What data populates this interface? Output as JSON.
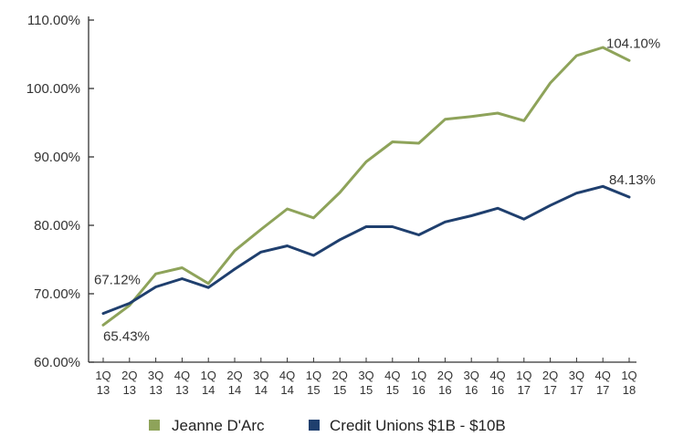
{
  "chart_data": {
    "type": "line",
    "title": "",
    "xlabel": "",
    "ylabel": "",
    "ylim": [
      60,
      110
    ],
    "yticks": [
      60,
      70,
      80,
      90,
      100,
      110
    ],
    "ytick_labels": [
      "60.00%",
      "70.00%",
      "80.00%",
      "90.00%",
      "100.00%",
      "110.00%"
    ],
    "categories": [
      [
        "1Q",
        "13"
      ],
      [
        "2Q",
        "13"
      ],
      [
        "3Q",
        "13"
      ],
      [
        "4Q",
        "13"
      ],
      [
        "1Q",
        "14"
      ],
      [
        "2Q",
        "14"
      ],
      [
        "3Q",
        "14"
      ],
      [
        "4Q",
        "14"
      ],
      [
        "1Q",
        "15"
      ],
      [
        "2Q",
        "15"
      ],
      [
        "3Q",
        "15"
      ],
      [
        "4Q",
        "15"
      ],
      [
        "1Q",
        "16"
      ],
      [
        "2Q",
        "16"
      ],
      [
        "3Q",
        "16"
      ],
      [
        "4Q",
        "16"
      ],
      [
        "1Q",
        "17"
      ],
      [
        "2Q",
        "17"
      ],
      [
        "3Q",
        "17"
      ],
      [
        "4Q",
        "17"
      ],
      [
        "1Q",
        "18"
      ]
    ],
    "series": [
      {
        "name": "Jeanne D'Arc",
        "color": "#8ea35a",
        "values": [
          65.43,
          68.3,
          72.9,
          73.8,
          71.5,
          76.3,
          79.4,
          82.4,
          81.1,
          84.8,
          89.3,
          92.2,
          92.0,
          95.5,
          95.9,
          96.4,
          95.3,
          100.8,
          104.8,
          106.0,
          104.1
        ],
        "labels": [
          {
            "index": 0,
            "text": "65.43%"
          },
          {
            "index": 20,
            "text": "104.10%"
          }
        ]
      },
      {
        "name": "Credit Unions $1B - $10B",
        "color": "#1f3f6e",
        "values": [
          67.12,
          68.6,
          71.0,
          72.2,
          70.9,
          73.6,
          76.1,
          77.0,
          75.6,
          77.9,
          79.8,
          79.8,
          78.6,
          80.5,
          81.4,
          82.5,
          80.9,
          82.9,
          84.7,
          85.7,
          84.13
        ],
        "labels": [
          {
            "index": 0,
            "text": "67.12%"
          },
          {
            "index": 20,
            "text": "84.13%"
          }
        ]
      }
    ],
    "legend": "bottom-center",
    "grid": false
  }
}
